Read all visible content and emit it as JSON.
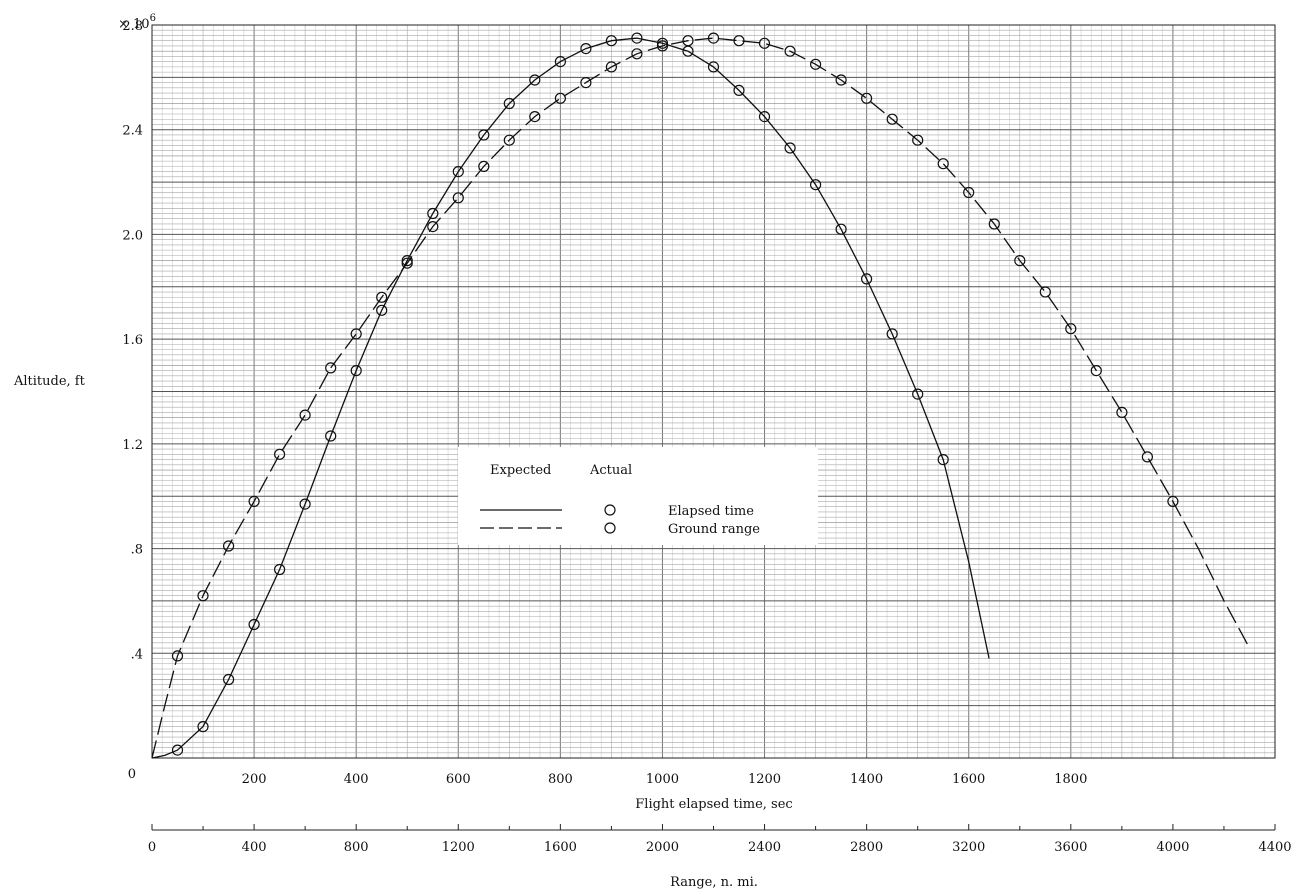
{
  "chart_data": {
    "type": "line",
    "ylabel": "Altitude, ft",
    "y_multiplier_label": "× 10",
    "y_multiplier_exponent": "6",
    "ylim": [
      0,
      2.8
    ],
    "y_ticks": [
      {
        "v": 0,
        "label": "0"
      },
      {
        "v": 0.4,
        "label": ".4"
      },
      {
        "v": 0.8,
        "label": ".8"
      },
      {
        "v": 1.2,
        "label": "1.2"
      },
      {
        "v": 1.6,
        "label": "1.6"
      },
      {
        "v": 2.0,
        "label": "2.0"
      },
      {
        "v": 2.4,
        "label": "2.4"
      },
      {
        "v": 2.8,
        "label": "2.8"
      }
    ],
    "x_axis_time": {
      "label": "Flight elapsed time, sec",
      "xlim": [
        0,
        2200
      ],
      "ticks": [
        {
          "v": 200,
          "label": "200"
        },
        {
          "v": 400,
          "label": "400"
        },
        {
          "v": 600,
          "label": "600"
        },
        {
          "v": 800,
          "label": "800"
        },
        {
          "v": 1000,
          "label": "1000"
        },
        {
          "v": 1200,
          "label": "1200"
        },
        {
          "v": 1400,
          "label": "1400"
        },
        {
          "v": 1600,
          "label": "1600"
        },
        {
          "v": 1800,
          "label": "1800"
        }
      ]
    },
    "x_axis_range": {
      "label": "Range, n. mi.",
      "xlim": [
        0,
        4400
      ],
      "ticks": [
        {
          "v": 0,
          "label": "0"
        },
        {
          "v": 400,
          "label": "400"
        },
        {
          "v": 800,
          "label": "800"
        },
        {
          "v": 1200,
          "label": "1200"
        },
        {
          "v": 1600,
          "label": "1600"
        },
        {
          "v": 2000,
          "label": "2000"
        },
        {
          "v": 2400,
          "label": "2400"
        },
        {
          "v": 2800,
          "label": "2800"
        },
        {
          "v": 3200,
          "label": "3200"
        },
        {
          "v": 3600,
          "label": "3600"
        },
        {
          "v": 4000,
          "label": "4000"
        },
        {
          "v": 4400,
          "label": "4400"
        }
      ]
    },
    "legend": {
      "placement": "center",
      "header_expected": "Expected",
      "header_actual": "Actual",
      "entries": [
        {
          "name": "Elapsed time",
          "line": "solid"
        },
        {
          "name": "Ground range",
          "line": "dashed"
        }
      ]
    },
    "series": [
      {
        "name": "Elapsed time",
        "x_axis": "time",
        "expected": {
          "x": [
            0,
            25,
            50,
            100,
            150,
            200,
            250,
            300,
            350,
            400,
            450,
            500,
            550,
            600,
            650,
            700,
            750,
            800,
            850,
            900,
            950,
            1000,
            1050,
            1100,
            1150,
            1200,
            1250,
            1300,
            1350,
            1400,
            1450,
            1500,
            1550,
            1600,
            1640
          ],
          "y": [
            0,
            0.01,
            0.03,
            0.12,
            0.3,
            0.51,
            0.72,
            0.97,
            1.23,
            1.48,
            1.71,
            1.9,
            2.08,
            2.24,
            2.38,
            2.5,
            2.59,
            2.66,
            2.71,
            2.74,
            2.75,
            2.73,
            2.7,
            2.64,
            2.55,
            2.45,
            2.33,
            2.19,
            2.02,
            1.83,
            1.62,
            1.39,
            1.14,
            0.75,
            0.38
          ]
        },
        "actual": {
          "x": [
            50,
            100,
            150,
            200,
            250,
            300,
            350,
            400,
            450,
            500,
            550,
            600,
            650,
            700,
            750,
            800,
            850,
            900,
            950,
            1000,
            1050,
            1100,
            1150,
            1200,
            1250,
            1300,
            1350,
            1400,
            1450,
            1500,
            1550
          ],
          "y": [
            0.03,
            0.12,
            0.3,
            0.51,
            0.72,
            0.97,
            1.23,
            1.48,
            1.71,
            1.9,
            2.08,
            2.24,
            2.38,
            2.5,
            2.59,
            2.66,
            2.71,
            2.74,
            2.75,
            2.73,
            2.7,
            2.64,
            2.55,
            2.45,
            2.33,
            2.19,
            2.02,
            1.83,
            1.62,
            1.39,
            1.14
          ]
        }
      },
      {
        "name": "Ground range",
        "x_axis": "range",
        "expected": {
          "x": [
            0,
            50,
            100,
            200,
            300,
            400,
            500,
            600,
            700,
            800,
            900,
            1000,
            1100,
            1200,
            1300,
            1400,
            1500,
            1600,
            1700,
            1800,
            1900,
            2000,
            2100,
            2200,
            2300,
            2400,
            2500,
            2600,
            2700,
            2800,
            2900,
            3000,
            3100,
            3200,
            3300,
            3400,
            3500,
            3600,
            3700,
            3800,
            3900,
            4000,
            4100,
            4200,
            4300
          ],
          "y": [
            0,
            0.2,
            0.39,
            0.62,
            0.81,
            0.98,
            1.16,
            1.31,
            1.49,
            1.62,
            1.76,
            1.89,
            2.03,
            2.14,
            2.26,
            2.36,
            2.45,
            2.52,
            2.58,
            2.64,
            2.69,
            2.72,
            2.74,
            2.75,
            2.74,
            2.73,
            2.7,
            2.65,
            2.59,
            2.52,
            2.44,
            2.36,
            2.27,
            2.16,
            2.04,
            1.9,
            1.78,
            1.64,
            1.48,
            1.32,
            1.15,
            0.98,
            0.8,
            0.6,
            0.42
          ]
        },
        "actual": {
          "x": [
            100,
            200,
            300,
            400,
            500,
            600,
            700,
            800,
            900,
            1000,
            1100,
            1200,
            1300,
            1400,
            1500,
            1600,
            1700,
            1800,
            1900,
            2000,
            2100,
            2200,
            2300,
            2400,
            2500,
            2600,
            2700,
            2800,
            2900,
            3000,
            3100,
            3200,
            3300,
            3400,
            3500,
            3600,
            3700,
            3800,
            3900,
            4000
          ],
          "y": [
            0.39,
            0.62,
            0.81,
            0.98,
            1.16,
            1.31,
            1.49,
            1.62,
            1.76,
            1.89,
            2.03,
            2.14,
            2.26,
            2.36,
            2.45,
            2.52,
            2.58,
            2.64,
            2.69,
            2.72,
            2.74,
            2.75,
            2.74,
            2.73,
            2.7,
            2.65,
            2.59,
            2.52,
            2.44,
            2.36,
            2.27,
            2.16,
            2.04,
            1.9,
            1.78,
            1.64,
            1.48,
            1.32,
            1.15,
            0.98
          ]
        }
      }
    ]
  }
}
